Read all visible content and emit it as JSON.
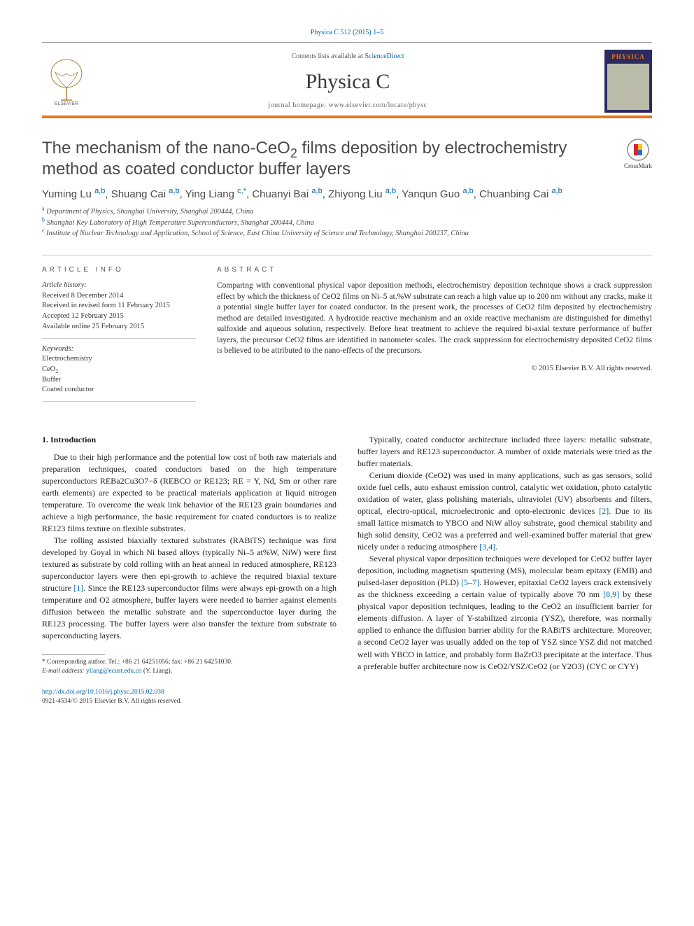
{
  "citation": "Physica C 512 (2015) 1–5",
  "masthead": {
    "contents_prefix": "Contents lists available at ",
    "contents_link": "ScienceDirect",
    "journal": "Physica C",
    "homepage_prefix": "journal homepage: ",
    "homepage": "www.elsevier.com/locate/physc",
    "cover_label": "PHYSICA"
  },
  "crossmark_label": "CrossMark",
  "title_parts": [
    "The mechanism of the nano-CeO",
    "2",
    " films deposition by electrochemistry method as coated conductor buffer layers"
  ],
  "authors": [
    {
      "name": "Yuming Lu",
      "aff": "a,b"
    },
    {
      "name": "Shuang Cai",
      "aff": "a,b"
    },
    {
      "name": "Ying Liang",
      "aff": "c,*"
    },
    {
      "name": "Chuanyi Bai",
      "aff": "a,b"
    },
    {
      "name": "Zhiyong Liu",
      "aff": "a,b"
    },
    {
      "name": "Yanqun Guo",
      "aff": "a,b"
    },
    {
      "name": "Chuanbing Cai",
      "aff": "a,b"
    }
  ],
  "affiliations": [
    {
      "key": "a",
      "text": "Department of Physics, Shanghai University, Shanghai 200444, China"
    },
    {
      "key": "b",
      "text": "Shanghai Key Laboratory of High Temperature Superconductors, Shanghai 200444, China"
    },
    {
      "key": "c",
      "text": "Institute of Nuclear Technology and Application, School of Science, East China University of Science and Technology, Shanghai 200237, China"
    }
  ],
  "info": {
    "head": "ARTICLE INFO",
    "history_label": "Article history:",
    "history": [
      "Received 8 December 2014",
      "Received in revised form 11 February 2015",
      "Accepted 12 February 2015",
      "Available online 25 February 2015"
    ],
    "keywords_label": "Keywords:",
    "keywords": [
      "Electrochemistry",
      "CeO2",
      "Buffer",
      "Coated conductor"
    ]
  },
  "abstract": {
    "head": "ABSTRACT",
    "text": "Comparing with conventional physical vapor deposition methods, electrochemistry deposition technique shows a crack suppression effect by which the thickness of CeO2 films on Ni–5 at.%W substrate can reach a high value up to 200 nm without any cracks, make it a potential single buffer layer for coated conductor. In the present work, the processes of CeO2 film deposited by electrochemistry method are detailed investigated. A hydroxide reactive mechanism and an oxide reactive mechanism are distinguished for dimethyl sulfoxide and aqueous solution, respectively. Before heat treatment to achieve the required bi-axial texture performance of buffer layers, the precursor CeO2 films are identified in nanometer scales. The crack suppression for electrochemistry deposited CeO2 films is believed to be attributed to the nano-effects of the precursors.",
    "copyright": "© 2015 Elsevier B.V. All rights reserved."
  },
  "sections": {
    "intro_head": "1. Introduction",
    "col1": [
      "Due to their high performance and the potential low cost of both raw materials and preparation techniques, coated conductors based on the high temperature superconductors REBa2Cu3O7−δ (REBCO or RE123; RE = Y, Nd, Sm or other rare earth elements) are expected to be practical materials application at liquid nitrogen temperature. To overcome the weak link behavior of the RE123 grain boundaries and achieve a high performance, the basic requirement for coated conductors is to realize RE123 films texture on flexible substrates.",
      "The rolling assisted biaxially textured substrates (RABiTS) technique was first developed by Goyal in which Ni based alloys (typically Ni–5 at%W, NiW) were first textured as substrate by cold rolling with an heat anneal in reduced atmosphere, RE123 superconductor layers were then epi-growth to achieve the required biaxial texture structure [1]. Since the RE123 superconductor films were always epi-growth on a high temperature and O2 atmosphere, buffer layers were needed to barrier against elements diffusion between the metallic substrate and the superconductor layer during the RE123 processing. The buffer layers were also transfer the texture from substrate to superconducting layers."
    ],
    "col2": [
      "Typically, coated conductor architecture included three layers: metallic substrate, buffer layers and RE123 superconductor. A number of oxide materials were tried as the buffer materials.",
      "Cerium dioxide (CeO2) was used in many applications, such as gas sensors, solid oxide fuel cells, auto exhaust emission control, catalytic wet oxidation, photo catalytic oxidation of water, glass polishing materials, ultraviolet (UV) absorbents and filters, optical, electro-optical, microelectronic and opto-electronic devices [2]. Due to its small lattice mismatch to YBCO and NiW alloy substrate, good chemical stability and high solid density, CeO2 was a preferred and well-examined buffer material that grew nicely under a reducing atmosphere [3,4].",
      "Several physical vapor deposition techniques were developed for CeO2 buffer layer deposition, including magnetism sputtering (MS), molecular beam epitaxy (EMB) and pulsed-laser deposition (PLD) [5–7]. However, epitaxial CeO2 layers crack extensively as the thickness exceeding a certain value of typically above 70 nm [8,9] by these physical vapor deposition techniques, leading to the CeO2 an insufficient barrier for elements diffusion. A layer of Y-stabilized zirconia (YSZ), therefore, was normally applied to enhance the diffusion barrier ability for the RABiTS architecture. Moreover, a second CeO2 layer was usually added on the top of YSZ since YSZ did not matched well with YBCO in lattice, and probably form BaZrO3 precipitate at the interface. Thus a preferable buffer architecture now is CeO2/YSZ/CeO2 (or Y2O3) (CYC or CYY)"
    ]
  },
  "footnote": {
    "marker": "*",
    "text": "Corresponding author. Tel.: +86 21 64251056; fax: +86 21 64251030.",
    "email_label": "E-mail address:",
    "email": "yliang@ecust.edu.cn",
    "email_paren": "(Y. Liang)."
  },
  "footer": {
    "doi": "http://dx.doi.org/10.1016/j.physc.2015.02.038",
    "issn_line": "0921-4534/© 2015 Elsevier B.V. All rights reserved."
  },
  "colors": {
    "accent": "#e67817",
    "link": "#0066aa",
    "text_body": "#222222",
    "rule": "#cccccc"
  }
}
